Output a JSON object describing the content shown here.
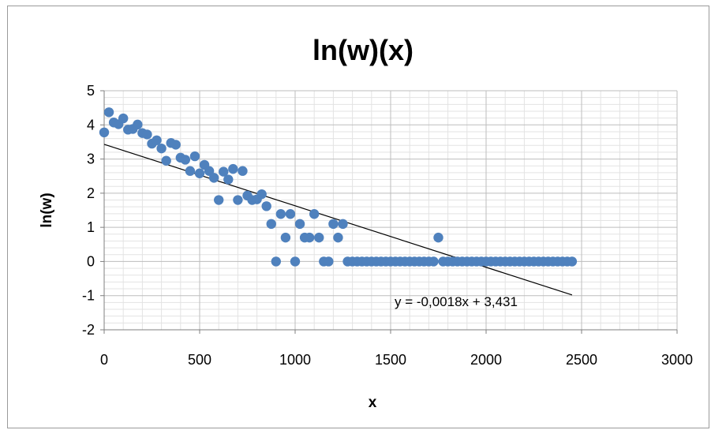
{
  "chart_data": {
    "type": "scatter",
    "title": "ln(w)(x)",
    "xlabel": "x",
    "ylabel": "ln(w)",
    "xlim": [
      0,
      3000
    ],
    "ylim": [
      -2,
      5
    ],
    "xticks": [
      "0",
      "500",
      "1000",
      "1500",
      "2000",
      "2500",
      "3000"
    ],
    "yticks": [
      "5",
      "4",
      "3",
      "2",
      "1",
      "0",
      "-1",
      "-2"
    ],
    "grid": "on (major and minor)",
    "legend": "none",
    "marker_color": "#4f81bd",
    "trendline": {
      "type": "linear",
      "slope": -0.0018,
      "intercept": 3.431,
      "x_range": [
        0,
        2450
      ],
      "label": "y = -0,0018x + 3,431",
      "color": "#000000"
    },
    "points": [
      [
        0,
        3.78
      ],
      [
        25,
        4.37
      ],
      [
        50,
        4.07
      ],
      [
        75,
        4.02
      ],
      [
        100,
        4.19
      ],
      [
        125,
        3.86
      ],
      [
        150,
        3.88
      ],
      [
        175,
        4.01
      ],
      [
        200,
        3.76
      ],
      [
        225,
        3.72
      ],
      [
        250,
        3.45
      ],
      [
        275,
        3.55
      ],
      [
        300,
        3.31
      ],
      [
        325,
        2.95
      ],
      [
        350,
        3.47
      ],
      [
        375,
        3.42
      ],
      [
        400,
        3.04
      ],
      [
        425,
        2.98
      ],
      [
        450,
        2.65
      ],
      [
        475,
        3.08
      ],
      [
        500,
        2.58
      ],
      [
        525,
        2.83
      ],
      [
        550,
        2.65
      ],
      [
        575,
        2.45
      ],
      [
        600,
        1.8
      ],
      [
        625,
        2.63
      ],
      [
        650,
        2.4
      ],
      [
        675,
        2.71
      ],
      [
        700,
        1.8
      ],
      [
        725,
        2.65
      ],
      [
        750,
        1.93
      ],
      [
        775,
        1.8
      ],
      [
        800,
        1.82
      ],
      [
        825,
        1.97
      ],
      [
        850,
        1.62
      ],
      [
        875,
        1.1
      ],
      [
        900,
        0.0
      ],
      [
        925,
        1.39
      ],
      [
        950,
        0.7
      ],
      [
        975,
        1.39
      ],
      [
        1000,
        0.0
      ],
      [
        1025,
        1.1
      ],
      [
        1050,
        0.7
      ],
      [
        1075,
        0.7
      ],
      [
        1100,
        1.39
      ],
      [
        1125,
        0.7
      ],
      [
        1150,
        0.0
      ],
      [
        1175,
        0.0
      ],
      [
        1200,
        1.1
      ],
      [
        1225,
        0.7
      ],
      [
        1250,
        1.1
      ],
      [
        1275,
        0
      ],
      [
        1300,
        0
      ],
      [
        1325,
        0
      ],
      [
        1350,
        0
      ],
      [
        1375,
        0
      ],
      [
        1400,
        0
      ],
      [
        1425,
        0
      ],
      [
        1450,
        0
      ],
      [
        1475,
        0
      ],
      [
        1500,
        0
      ],
      [
        1525,
        0
      ],
      [
        1550,
        0
      ],
      [
        1575,
        0
      ],
      [
        1600,
        0
      ],
      [
        1625,
        0
      ],
      [
        1650,
        0
      ],
      [
        1675,
        0
      ],
      [
        1700,
        0
      ],
      [
        1725,
        0
      ],
      [
        1750,
        0.7
      ],
      [
        1775,
        0
      ],
      [
        1800,
        0
      ],
      [
        1825,
        0
      ],
      [
        1850,
        0
      ],
      [
        1875,
        0
      ],
      [
        1900,
        0
      ],
      [
        1925,
        0
      ],
      [
        1950,
        0
      ],
      [
        1975,
        0
      ],
      [
        2000,
        0
      ],
      [
        2025,
        0
      ],
      [
        2050,
        0
      ],
      [
        2075,
        0
      ],
      [
        2100,
        0
      ],
      [
        2125,
        0
      ],
      [
        2150,
        0
      ],
      [
        2175,
        0
      ],
      [
        2200,
        0
      ],
      [
        2225,
        0
      ],
      [
        2250,
        0
      ],
      [
        2275,
        0
      ],
      [
        2300,
        0
      ],
      [
        2325,
        0
      ],
      [
        2350,
        0
      ],
      [
        2375,
        0
      ],
      [
        2400,
        0
      ],
      [
        2425,
        0
      ],
      [
        2450,
        0
      ]
    ]
  }
}
